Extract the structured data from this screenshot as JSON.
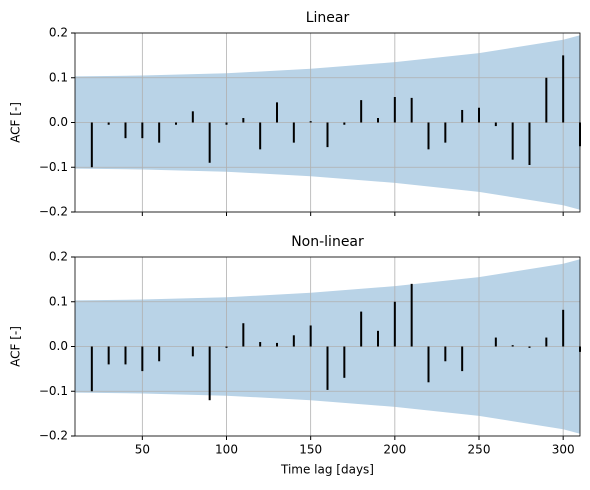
{
  "chart_data": [
    {
      "type": "bar",
      "title": "Linear",
      "ylabel": "ACF [-]",
      "color": "#000000",
      "band_color": "#b9d3e7",
      "grid": true,
      "show_xtick_labels": false,
      "x": [
        20,
        30,
        40,
        50,
        60,
        70,
        80,
        90,
        100,
        110,
        120,
        130,
        140,
        150,
        160,
        170,
        180,
        190,
        200,
        210,
        220,
        230,
        240,
        250,
        260,
        270,
        280,
        290,
        300,
        310
      ],
      "values": [
        -0.1,
        -0.005,
        -0.035,
        -0.035,
        -0.045,
        -0.005,
        0.025,
        -0.09,
        -0.005,
        0.01,
        -0.06,
        0.045,
        -0.045,
        0.003,
        -0.055,
        -0.005,
        0.05,
        0.01,
        0.057,
        0.055,
        -0.06,
        -0.045,
        0.028,
        0.033,
        -0.008,
        -0.083,
        -0.095,
        0.1,
        0.15,
        -0.053
      ],
      "band_x": [
        10,
        50,
        100,
        150,
        200,
        250,
        300,
        310
      ],
      "band_upper": [
        0.103,
        0.105,
        0.11,
        0.12,
        0.135,
        0.155,
        0.185,
        0.195
      ],
      "band_lower": [
        -0.103,
        -0.105,
        -0.11,
        -0.12,
        -0.135,
        -0.155,
        -0.185,
        -0.195
      ],
      "xlim": [
        10,
        310
      ],
      "xticks": [
        50,
        100,
        150,
        200,
        250,
        300
      ],
      "ylim": [
        -0.2,
        0.2
      ],
      "yticks": [
        {
          "value": -0.2,
          "label": "−0.2"
        },
        {
          "value": -0.1,
          "label": "−0.1"
        },
        {
          "value": 0,
          "label": "0.0"
        },
        0.1,
        0.2
      ]
    },
    {
      "type": "bar",
      "title": "Non-linear",
      "ylabel": "ACF [-]",
      "xlabel": "Time lag [days]",
      "color": "#000000",
      "band_color": "#b9d3e7",
      "grid": true,
      "show_xtick_labels": true,
      "x": [
        20,
        30,
        40,
        50,
        60,
        70,
        80,
        90,
        100,
        110,
        120,
        130,
        140,
        150,
        160,
        170,
        180,
        190,
        200,
        210,
        220,
        230,
        240,
        250,
        260,
        270,
        280,
        290,
        300,
        310
      ],
      "values": [
        -0.1,
        -0.04,
        -0.04,
        -0.055,
        -0.033,
        0,
        -0.022,
        -0.12,
        -0.003,
        0.052,
        0.01,
        0.008,
        0.025,
        0.047,
        -0.097,
        -0.07,
        0.078,
        0.035,
        0.1,
        0.14,
        -0.08,
        -0.033,
        -0.055,
        0,
        0.02,
        0.003,
        -0.003,
        0.02,
        0.082,
        -0.012
      ],
      "band_x": [
        10,
        50,
        100,
        150,
        200,
        250,
        300,
        310
      ],
      "band_upper": [
        0.103,
        0.105,
        0.11,
        0.12,
        0.135,
        0.155,
        0.185,
        0.195
      ],
      "band_lower": [
        -0.103,
        -0.105,
        -0.11,
        -0.12,
        -0.135,
        -0.155,
        -0.185,
        -0.195
      ],
      "xlim": [
        10,
        310
      ],
      "xticks": [
        50,
        100,
        150,
        200,
        250,
        300
      ],
      "ylim": [
        -0.2,
        0.2
      ],
      "yticks": [
        {
          "value": -0.2,
          "label": "−0.2"
        },
        {
          "value": -0.1,
          "label": "−0.1"
        },
        {
          "value": 0,
          "label": "0.0"
        },
        0.1,
        0.2
      ]
    }
  ]
}
